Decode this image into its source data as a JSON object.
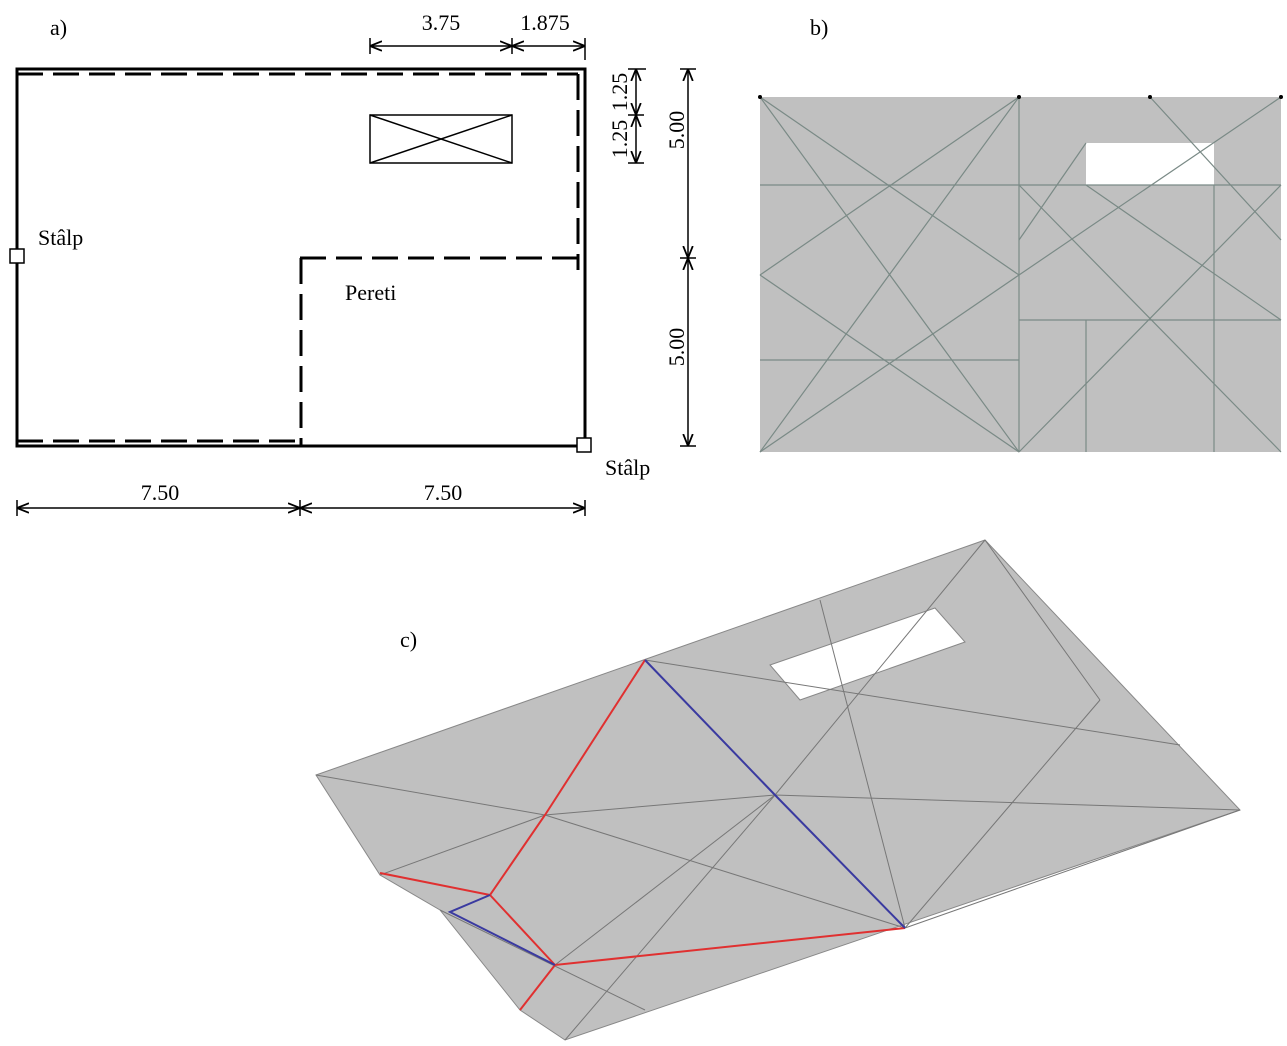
{
  "panel_a": {
    "label": "a)",
    "dim_top": [
      "3.75",
      "1.875"
    ],
    "dim_right_small": [
      "1.25",
      "1.25"
    ],
    "dim_right": [
      "5.00",
      "5.00"
    ],
    "dim_bottom": [
      "7.50",
      "7.50"
    ],
    "column_left": "Stâlp",
    "column_right": "Stâlp",
    "walls": "Pereti"
  },
  "panel_b": {
    "label": "b)"
  },
  "panel_c": {
    "label": "c)"
  }
}
